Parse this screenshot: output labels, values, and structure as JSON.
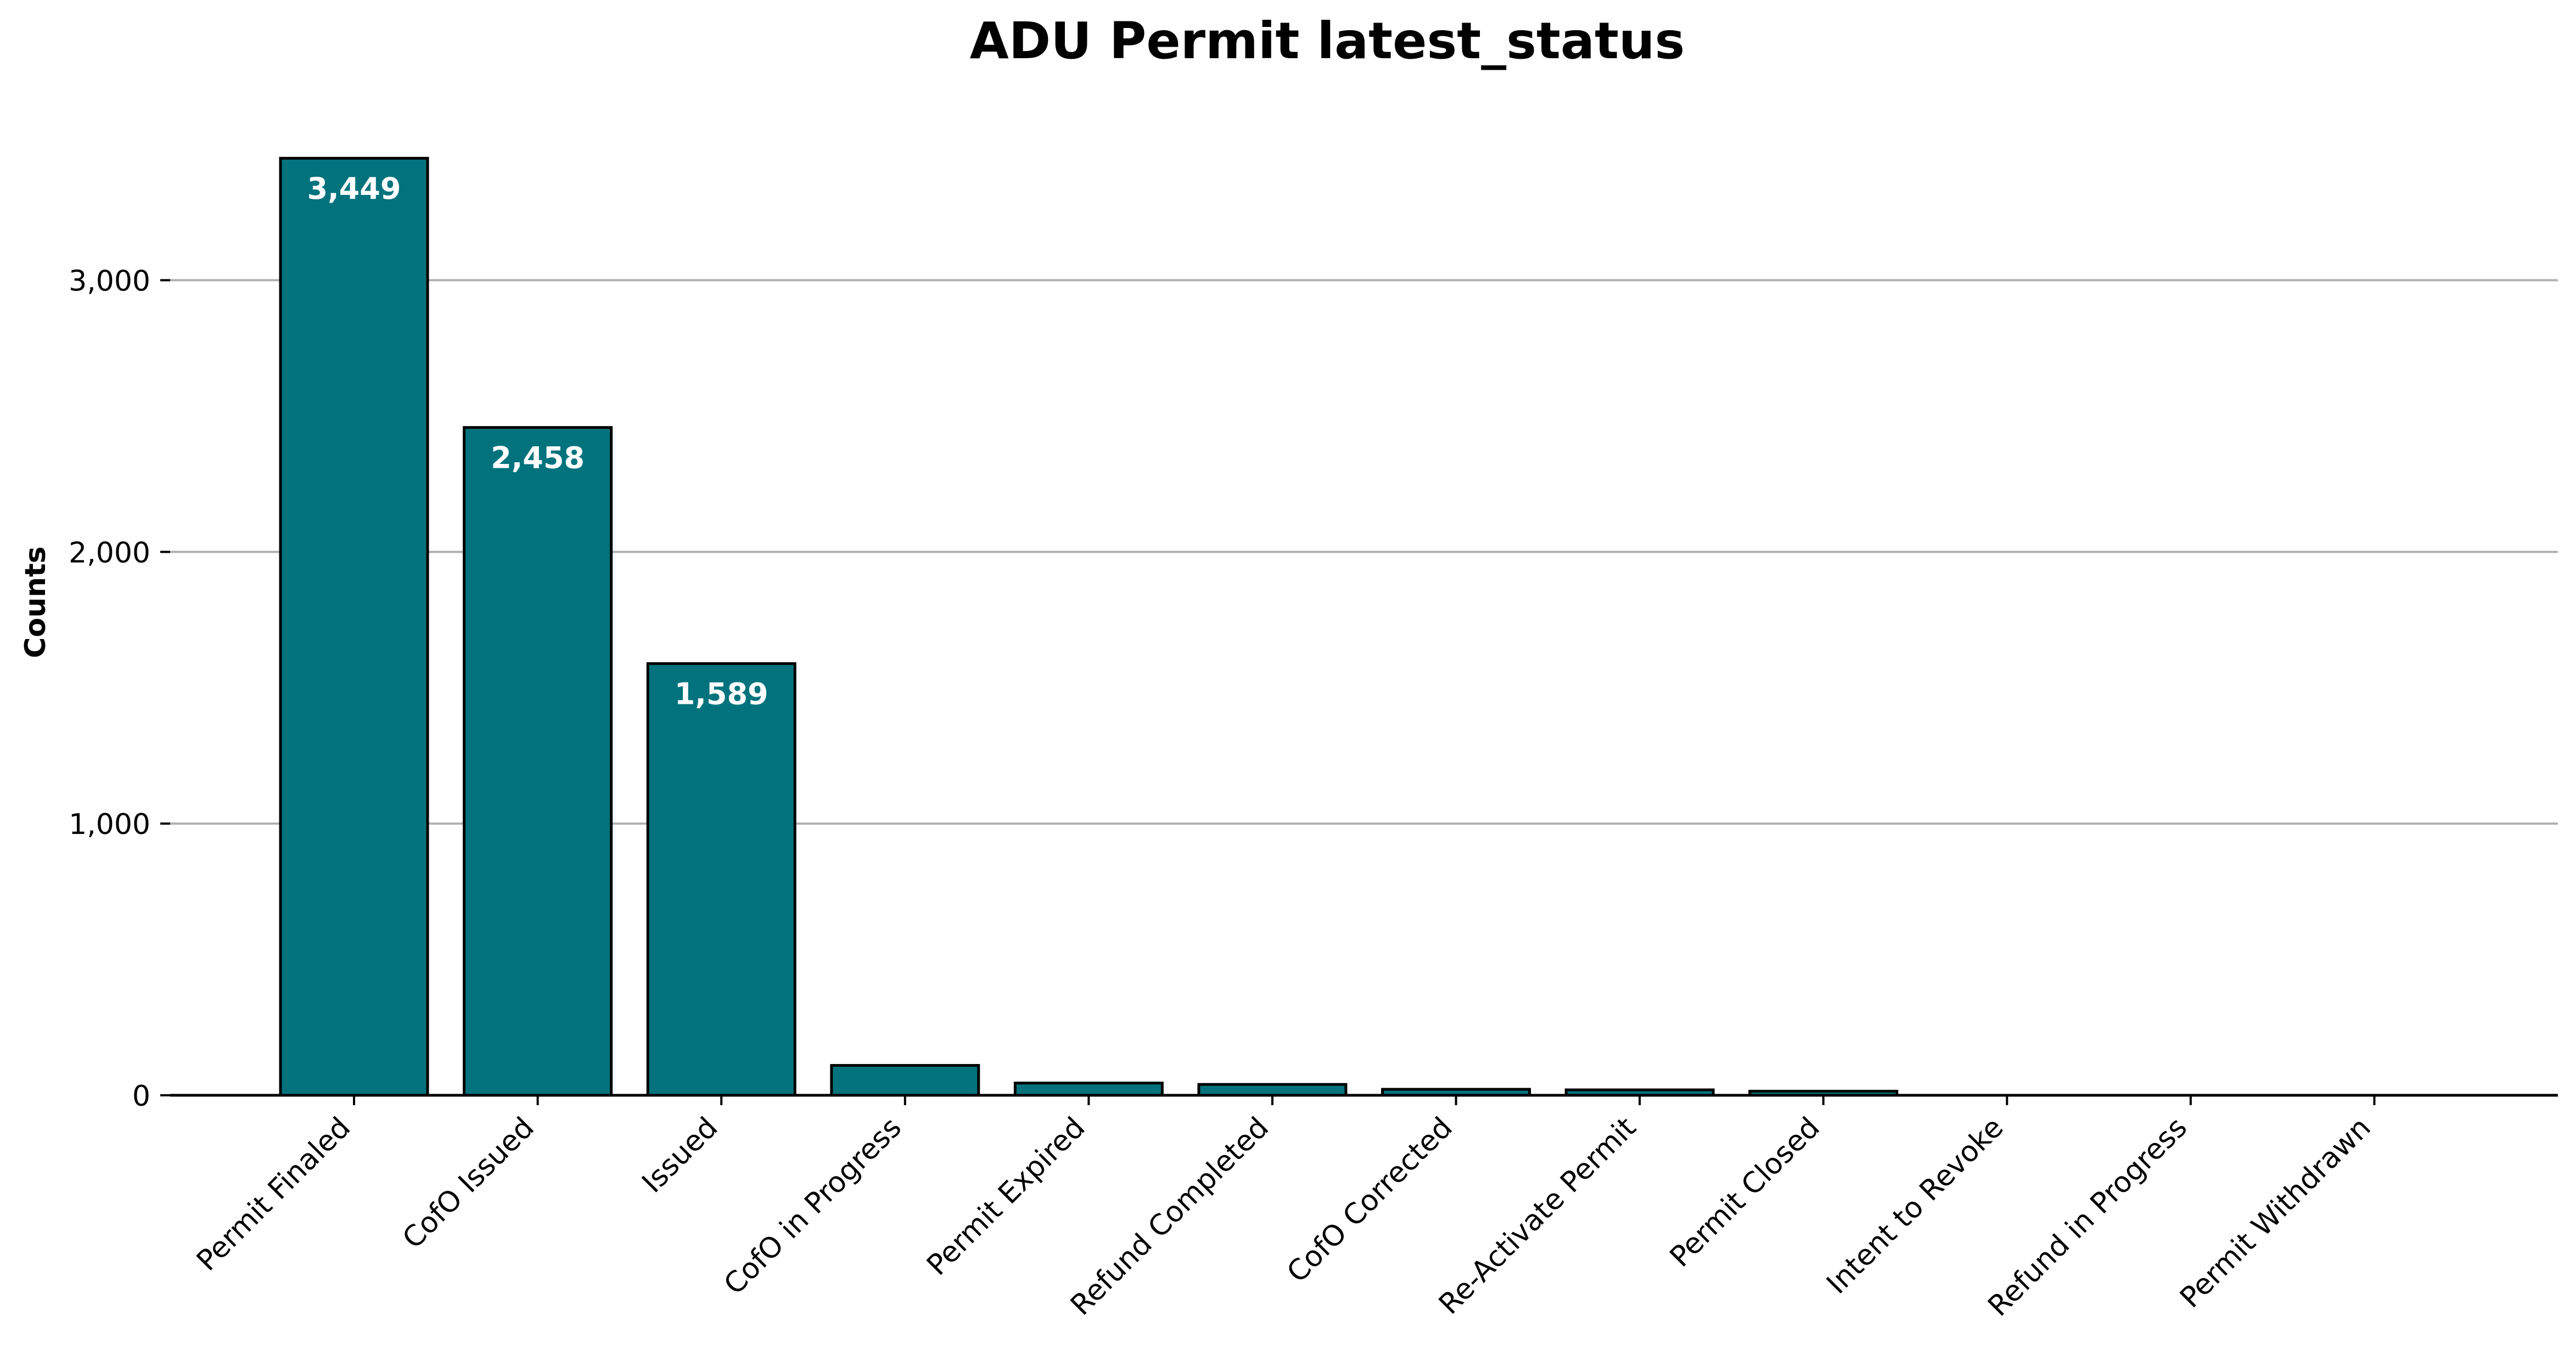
{
  "chart_data": {
    "type": "bar",
    "title": "ADU Permit latest_status",
    "xlabel": "",
    "ylabel": "Counts",
    "categories": [
      "Permit Finaled",
      "CofO Issued",
      "Issued",
      "CofO in Progress",
      "Permit Expired",
      "Refund Completed",
      "CofO Corrected",
      "Re-Activate Permit",
      "Permit Closed",
      "Intent to Revoke",
      "Refund in Progress",
      "Permit Withdrawn"
    ],
    "values": [
      3449,
      2458,
      1589,
      110,
      45,
      40,
      22,
      20,
      15,
      1,
      1,
      1
    ],
    "data_labels": [
      "3,449",
      "2,458",
      "1,589",
      "",
      "",
      "",
      "",
      "",
      "",
      "",
      "",
      ""
    ],
    "ylim": [
      0,
      3500
    ],
    "yticks": [
      0,
      1000,
      2000,
      3000
    ],
    "ytick_labels": [
      "0",
      "1,000",
      "2,000",
      "3,000"
    ],
    "grid": "horizontal",
    "legend": "none",
    "bar_color": "#02737d",
    "edge_color": "#000000"
  }
}
